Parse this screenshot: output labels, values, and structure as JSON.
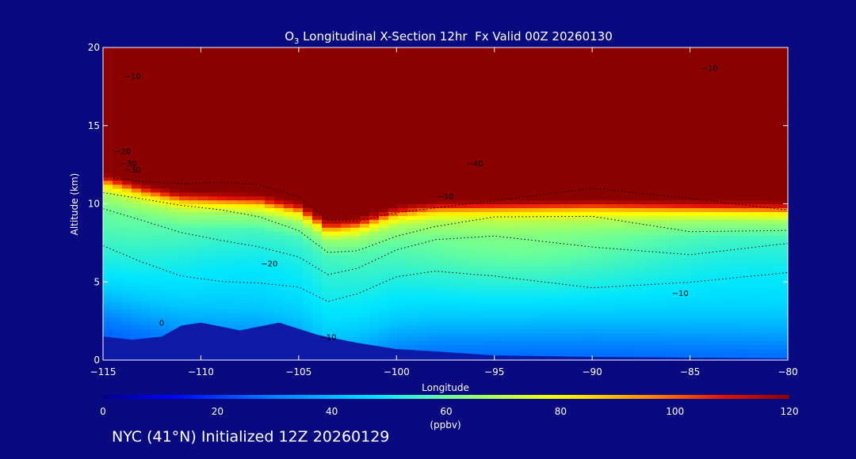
{
  "chart_data": {
    "type": "heatmap",
    "title_prefix": "O",
    "title_subscript": "3",
    "title_rest": " Longitudinal X-Section 12hr  Fx Valid 00Z 20260130",
    "xlabel": "Longitude",
    "ylabel": "Altitude (km)",
    "xlim": [
      -115,
      -80
    ],
    "ylim": [
      0,
      20
    ],
    "x_ticks": [
      -115,
      -110,
      -105,
      -100,
      -95,
      -90,
      -85,
      -80
    ],
    "x_tick_labels": [
      "−115",
      "−110",
      "−105",
      "−100",
      "−95",
      "−90",
      "−85",
      "−80"
    ],
    "y_ticks": [
      0,
      5,
      10,
      15,
      20
    ],
    "y_tick_labels": [
      "0",
      "5",
      "10",
      "15",
      "20"
    ],
    "colorbar": {
      "min": 0,
      "max": 120,
      "unit_label": "(ppbv)",
      "ticks": [
        0,
        20,
        40,
        60,
        80,
        100,
        120
      ],
      "tick_labels": [
        "0",
        "20",
        "40",
        "60",
        "80",
        "100",
        "120"
      ]
    },
    "tropopause_km": [
      [
        -115,
        11.7
      ],
      [
        -113,
        11.0
      ],
      [
        -111,
        10.5
      ],
      [
        -109,
        10.4
      ],
      [
        -107,
        10.3
      ],
      [
        -105,
        9.8
      ],
      [
        -103.5,
        8.6
      ],
      [
        -102,
        8.8
      ],
      [
        -100,
        9.6
      ],
      [
        -98,
        9.9
      ],
      [
        -95,
        9.95
      ],
      [
        -90,
        10.0
      ],
      [
        -85,
        9.9
      ],
      [
        -80,
        9.8
      ]
    ],
    "terrain_km": [
      [
        -115,
        1.5
      ],
      [
        -113.5,
        1.3
      ],
      [
        -112,
        1.5
      ],
      [
        -111,
        2.2
      ],
      [
        -110,
        2.4
      ],
      [
        -108,
        1.9
      ],
      [
        -106,
        2.4
      ],
      [
        -104,
        1.6
      ],
      [
        -102,
        1.1
      ],
      [
        -100,
        0.7
      ],
      [
        -98,
        0.55
      ],
      [
        -95,
        0.3
      ],
      [
        -90,
        0.2
      ],
      [
        -85,
        0.15
      ],
      [
        -80,
        0.1
      ]
    ],
    "ozone_levels_ppbv": [
      [
        0,
        26
      ],
      [
        1,
        30
      ],
      [
        2,
        37
      ],
      [
        3,
        43
      ],
      [
        4,
        47
      ],
      [
        5,
        50
      ],
      [
        6,
        53
      ],
      [
        7,
        56
      ],
      [
        8,
        59
      ],
      [
        9,
        68
      ],
      [
        9.6,
        85
      ],
      [
        10,
        110
      ],
      [
        10.5,
        125
      ],
      [
        20,
        130
      ]
    ],
    "contour_labels": [
      {
        "text": "−10",
        "lon": -113.5,
        "alt": 18.0
      },
      {
        "text": "−10",
        "lon": -84.0,
        "alt": 18.5
      },
      {
        "text": "−20",
        "lon": -114.0,
        "alt": 13.2
      },
      {
        "text": "−30",
        "lon": -113.7,
        "alt": 12.4
      },
      {
        "text": "−30",
        "lon": -113.5,
        "alt": 12.0
      },
      {
        "text": "−40",
        "lon": -96.0,
        "alt": 12.4
      },
      {
        "text": "−10",
        "lon": -97.5,
        "alt": 10.3
      },
      {
        "text": "−20",
        "lon": -106.5,
        "alt": 6.0
      },
      {
        "text": "−10",
        "lon": -85.5,
        "alt": 4.1
      },
      {
        "text": "0",
        "lon": -112.0,
        "alt": 2.2
      },
      {
        "text": "−10",
        "lon": -103.5,
        "alt": 1.3
      }
    ]
  },
  "footer": "NYC (41°N) Initialized 12Z 20260129",
  "colors": {
    "background": "#0a0a80",
    "foreground": "#ffffff",
    "strat": "#8b0000",
    "terrain": "#0c1aa6"
  }
}
